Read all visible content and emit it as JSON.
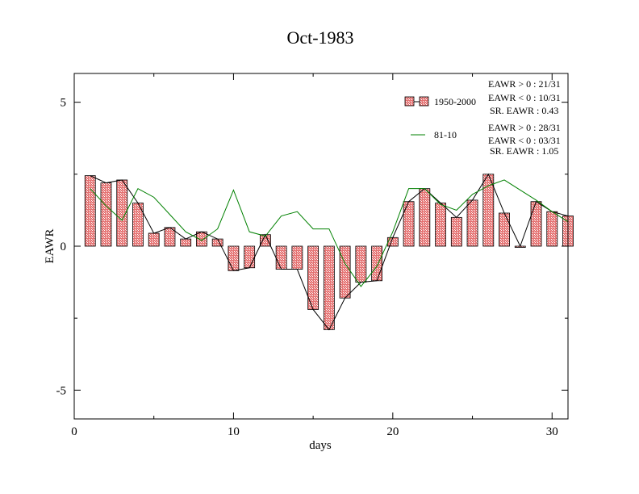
{
  "chart_data": {
    "type": "bar",
    "title": "Oct-1983",
    "xlabel": "days",
    "ylabel": "EAWR",
    "xlim": [
      0,
      31
    ],
    "ylim": [
      -6,
      6
    ],
    "x_ticks": [
      0,
      10,
      20,
      30
    ],
    "y_ticks": [
      -5,
      0,
      5
    ],
    "x_tick_labels": [
      "0",
      "10",
      "20",
      "30"
    ],
    "y_tick_labels": [
      "-5",
      "0",
      "5"
    ],
    "grid": false,
    "legend_position": "top-right",
    "x": [
      1,
      2,
      3,
      4,
      5,
      6,
      7,
      8,
      9,
      10,
      11,
      12,
      13,
      14,
      15,
      16,
      17,
      18,
      19,
      20,
      21,
      22,
      23,
      24,
      25,
      26,
      27,
      28,
      29,
      30,
      31
    ],
    "series": [
      {
        "name": "1950-2000",
        "type": "bar",
        "color": "#e07070",
        "values": [
          2.45,
          2.2,
          2.3,
          1.5,
          0.45,
          0.65,
          0.25,
          0.5,
          0.25,
          -0.85,
          -0.75,
          0.4,
          -0.8,
          -0.8,
          -2.2,
          -2.9,
          -1.8,
          -1.25,
          -1.2,
          0.3,
          1.55,
          2.0,
          1.5,
          1.0,
          1.6,
          2.5,
          1.15,
          0.0,
          1.55,
          1.2,
          1.05
        ]
      },
      {
        "name": "81-10",
        "type": "line",
        "color": "#008000",
        "values": [
          2.0,
          1.4,
          0.9,
          2.0,
          1.7,
          1.1,
          0.5,
          0.2,
          0.6,
          1.95,
          0.5,
          0.35,
          1.05,
          1.2,
          0.6,
          0.6,
          -0.6,
          -1.4,
          -0.7,
          0.5,
          2.0,
          2.0,
          1.45,
          1.25,
          1.8,
          2.1,
          2.3,
          1.95,
          1.6,
          1.2,
          0.85
        ]
      }
    ],
    "annotations": {
      "group1": [
        "EAWR > 0 : 21/31",
        "EAWR < 0 : 10/31",
        "SR. EAWR :  0.43"
      ],
      "group2": [
        "EAWR > 0 : 28/31",
        "EAWR < 0 : 03/31",
        "SR. EAWR :  1.05"
      ]
    }
  }
}
